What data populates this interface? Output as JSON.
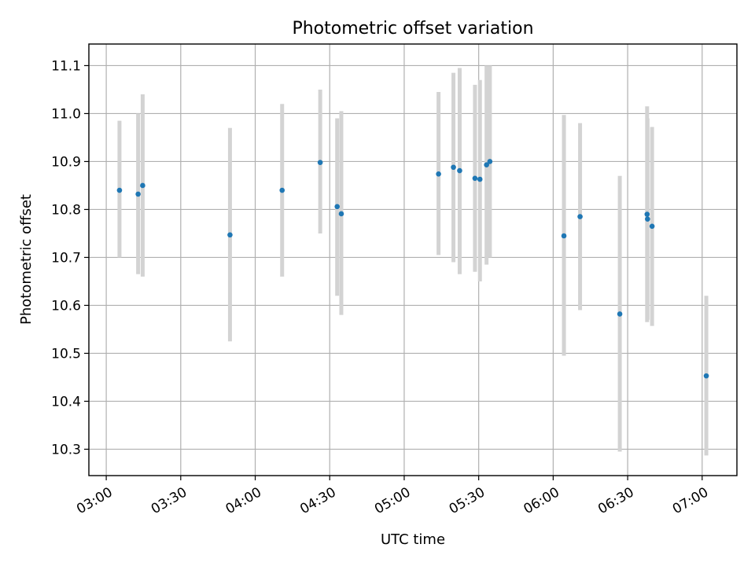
{
  "chart_data": {
    "type": "scatter",
    "title": "Photometric offset variation",
    "xlabel": "UTC time",
    "ylabel": "Photometric offset",
    "x_unit": "UTC HH:MM",
    "xlim": [
      "02:53",
      "07:14"
    ],
    "ylim": [
      10.245,
      11.145
    ],
    "x_ticks": [
      "03:00",
      "03:30",
      "04:00",
      "04:30",
      "05:00",
      "05:30",
      "06:00",
      "06:30",
      "07:00"
    ],
    "y_ticks": [
      10.3,
      10.4,
      10.5,
      10.6,
      10.7,
      10.8,
      10.9,
      11.0,
      11.1
    ],
    "y_tick_labels": [
      "10.3",
      "10.4",
      "10.5",
      "10.6",
      "10.7",
      "10.8",
      "10.9",
      "11.0",
      "11.1"
    ],
    "grid": true,
    "marker_color": "#1f77b4",
    "errorbar_color": "#d3d3d3",
    "points": [
      {
        "x": "03:05:20",
        "y": 10.84,
        "yerr_low": 10.7,
        "yerr_high": 10.985
      },
      {
        "x": "03:12:50",
        "y": 10.832,
        "yerr_low": 10.665,
        "yerr_high": 11.0
      },
      {
        "x": "03:14:40",
        "y": 10.85,
        "yerr_low": 10.66,
        "yerr_high": 11.04
      },
      {
        "x": "03:49:50",
        "y": 10.747,
        "yerr_low": 10.525,
        "yerr_high": 10.97
      },
      {
        "x": "04:10:50",
        "y": 10.84,
        "yerr_low": 10.66,
        "yerr_high": 11.02
      },
      {
        "x": "04:26:10",
        "y": 10.898,
        "yerr_low": 10.75,
        "yerr_high": 11.05
      },
      {
        "x": "04:33:00",
        "y": 10.806,
        "yerr_low": 10.62,
        "yerr_high": 10.99
      },
      {
        "x": "04:34:40",
        "y": 10.791,
        "yerr_low": 10.58,
        "yerr_high": 11.005
      },
      {
        "x": "05:13:50",
        "y": 10.874,
        "yerr_low": 10.705,
        "yerr_high": 11.045
      },
      {
        "x": "05:19:50",
        "y": 10.888,
        "yerr_low": 10.69,
        "yerr_high": 11.085
      },
      {
        "x": "05:22:20",
        "y": 10.881,
        "yerr_low": 10.665,
        "yerr_high": 11.095
      },
      {
        "x": "05:28:30",
        "y": 10.865,
        "yerr_low": 10.67,
        "yerr_high": 11.06
      },
      {
        "x": "05:30:30",
        "y": 10.863,
        "yerr_low": 10.65,
        "yerr_high": 11.07
      },
      {
        "x": "05:33:10",
        "y": 10.893,
        "yerr_low": 10.685,
        "yerr_high": 11.1
      },
      {
        "x": "05:34:30",
        "y": 10.9,
        "yerr_low": 10.7,
        "yerr_high": 11.1
      },
      {
        "x": "06:04:20",
        "y": 10.745,
        "yerr_low": 10.495,
        "yerr_high": 10.997
      },
      {
        "x": "06:10:50",
        "y": 10.785,
        "yerr_low": 10.59,
        "yerr_high": 10.98
      },
      {
        "x": "06:26:50",
        "y": 10.582,
        "yerr_low": 10.295,
        "yerr_high": 10.87
      },
      {
        "x": "06:37:50",
        "y": 10.79,
        "yerr_low": 10.565,
        "yerr_high": 11.015
      },
      {
        "x": "06:38:00",
        "y": 10.78,
        "yerr_low": 10.57,
        "yerr_high": 10.99
      },
      {
        "x": "06:39:50",
        "y": 10.765,
        "yerr_low": 10.557,
        "yerr_high": 10.972
      },
      {
        "x": "07:01:40",
        "y": 10.453,
        "yerr_low": 10.287,
        "yerr_high": 10.62
      }
    ]
  }
}
